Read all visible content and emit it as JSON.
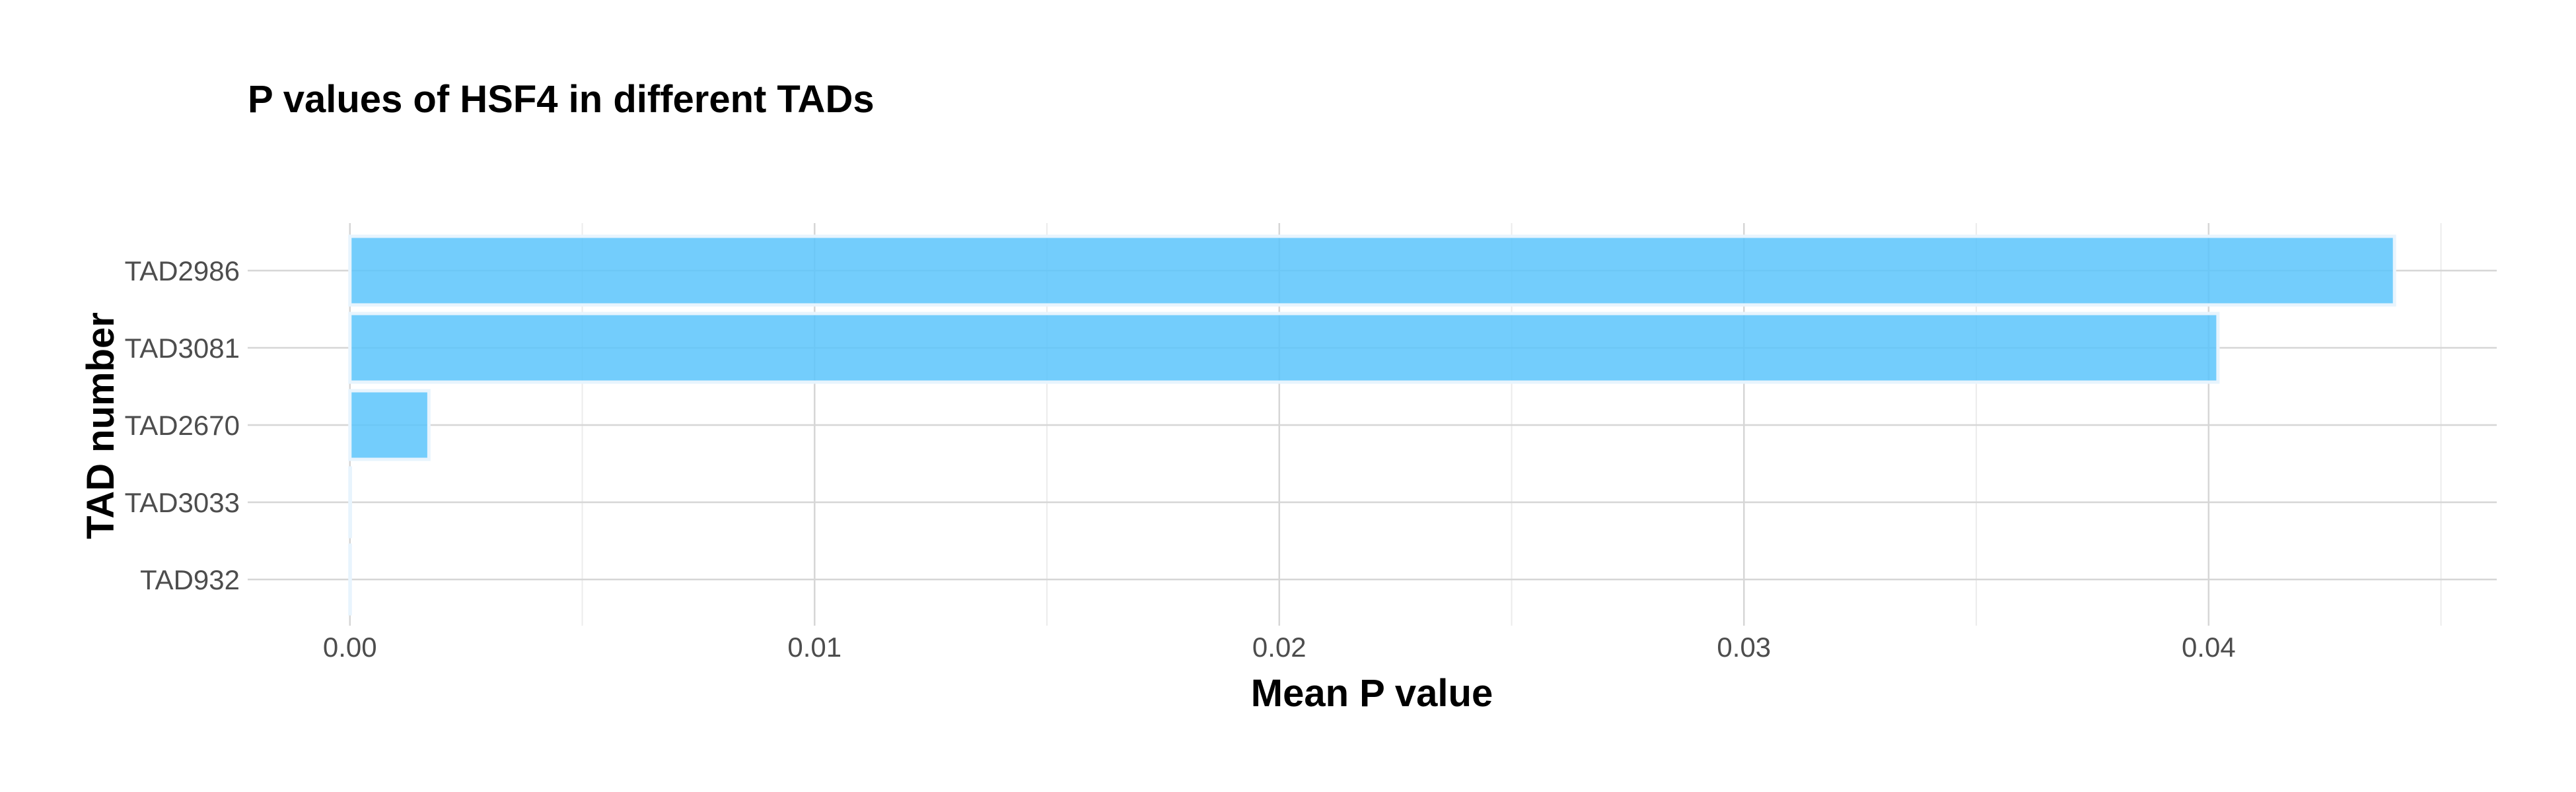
{
  "chart_data": {
    "type": "bar",
    "orientation": "horizontal",
    "title": "P values of HSF4 in different TADs",
    "xlabel": "Mean P value",
    "ylabel": "TAD number",
    "categories": [
      "TAD2986",
      "TAD3081",
      "TAD2670",
      "TAD3033",
      "TAD932"
    ],
    "values": [
      0.044,
      0.0402,
      0.0017,
      1e-05,
      0.0
    ],
    "xlim": [
      -0.0022,
      0.0462
    ],
    "xticks": [
      "0.00",
      "0.01",
      "0.02",
      "0.03",
      "0.04"
    ],
    "grid": true,
    "legend": "none",
    "bar_color": "#5bc4fb"
  }
}
